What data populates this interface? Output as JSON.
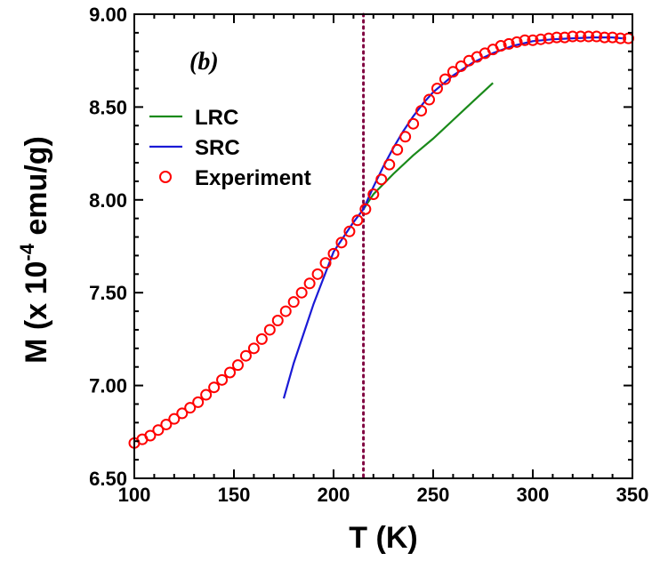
{
  "chart_data": {
    "type": "line",
    "panel_label": "(b)",
    "xlabel": "T (K)",
    "ylabel_parts": {
      "prefix": "M (x 10",
      "exponent": "-4",
      "suffix": " emu/g)"
    },
    "xlim": [
      100,
      350
    ],
    "ylim": [
      6.5,
      9.0
    ],
    "xticks": [
      100,
      150,
      200,
      250,
      300,
      350
    ],
    "xtick_labels": [
      "100",
      "150",
      "200",
      "250",
      "300",
      "350"
    ],
    "yticks": [
      6.5,
      7.0,
      7.5,
      8.0,
      8.5,
      9.0
    ],
    "ytick_labels": [
      "6.50",
      "7.00",
      "7.50",
      "8.00",
      "8.50",
      "9.00"
    ],
    "grid": false,
    "legend_position": "upper-left",
    "vertical_line": {
      "x": 215,
      "color": "#800040",
      "style": "dotted"
    },
    "series": [
      {
        "name": "LRC",
        "kind": "line",
        "color": "#1a8a1a",
        "points": [
          [
            215,
            7.95
          ],
          [
            220,
            8.03
          ],
          [
            230,
            8.14
          ],
          [
            240,
            8.24
          ],
          [
            250,
            8.33
          ],
          [
            260,
            8.43
          ],
          [
            270,
            8.53
          ],
          [
            280,
            8.63
          ]
        ]
      },
      {
        "name": "SRC",
        "kind": "line",
        "color": "#1a1ad6",
        "points": [
          [
            175,
            6.93
          ],
          [
            180,
            7.12
          ],
          [
            185,
            7.28
          ],
          [
            190,
            7.44
          ],
          [
            195,
            7.58
          ],
          [
            200,
            7.72
          ],
          [
            205,
            7.8
          ],
          [
            210,
            7.88
          ],
          [
            215,
            7.95
          ],
          [
            220,
            8.07
          ],
          [
            225,
            8.18
          ],
          [
            230,
            8.28
          ],
          [
            235,
            8.37
          ],
          [
            240,
            8.45
          ],
          [
            245,
            8.52
          ],
          [
            250,
            8.58
          ],
          [
            260,
            8.67
          ],
          [
            270,
            8.74
          ],
          [
            280,
            8.79
          ],
          [
            290,
            8.83
          ],
          [
            300,
            8.855
          ],
          [
            310,
            8.865
          ],
          [
            320,
            8.87
          ],
          [
            330,
            8.875
          ],
          [
            340,
            8.875
          ],
          [
            345,
            8.87
          ]
        ]
      },
      {
        "name": "Experiment",
        "kind": "scatter",
        "color": "#ff0000",
        "points": [
          [
            100,
            6.69
          ],
          [
            104,
            6.71
          ],
          [
            108,
            6.73
          ],
          [
            112,
            6.76
          ],
          [
            116,
            6.79
          ],
          [
            120,
            6.82
          ],
          [
            124,
            6.85
          ],
          [
            128,
            6.88
          ],
          [
            132,
            6.91
          ],
          [
            136,
            6.95
          ],
          [
            140,
            6.99
          ],
          [
            144,
            7.03
          ],
          [
            148,
            7.07
          ],
          [
            152,
            7.11
          ],
          [
            156,
            7.16
          ],
          [
            160,
            7.2
          ],
          [
            164,
            7.25
          ],
          [
            168,
            7.3
          ],
          [
            172,
            7.35
          ],
          [
            176,
            7.4
          ],
          [
            180,
            7.45
          ],
          [
            184,
            7.5
          ],
          [
            188,
            7.55
          ],
          [
            192,
            7.6
          ],
          [
            196,
            7.66
          ],
          [
            200,
            7.71
          ],
          [
            204,
            7.77
          ],
          [
            208,
            7.83
          ],
          [
            212,
            7.89
          ],
          [
            216,
            7.95
          ],
          [
            220,
            8.03
          ],
          [
            224,
            8.11
          ],
          [
            228,
            8.19
          ],
          [
            232,
            8.27
          ],
          [
            236,
            8.34
          ],
          [
            240,
            8.41
          ],
          [
            244,
            8.48
          ],
          [
            248,
            8.54
          ],
          [
            252,
            8.6
          ],
          [
            256,
            8.65
          ],
          [
            260,
            8.69
          ],
          [
            264,
            8.72
          ],
          [
            268,
            8.75
          ],
          [
            272,
            8.77
          ],
          [
            276,
            8.79
          ],
          [
            280,
            8.81
          ],
          [
            284,
            8.83
          ],
          [
            288,
            8.84
          ],
          [
            292,
            8.85
          ],
          [
            296,
            8.86
          ],
          [
            300,
            8.86
          ],
          [
            304,
            8.865
          ],
          [
            308,
            8.87
          ],
          [
            312,
            8.875
          ],
          [
            316,
            8.875
          ],
          [
            320,
            8.88
          ],
          [
            324,
            8.88
          ],
          [
            328,
            8.88
          ],
          [
            332,
            8.88
          ],
          [
            336,
            8.875
          ],
          [
            340,
            8.875
          ],
          [
            344,
            8.87
          ],
          [
            348,
            8.87
          ]
        ]
      }
    ]
  }
}
